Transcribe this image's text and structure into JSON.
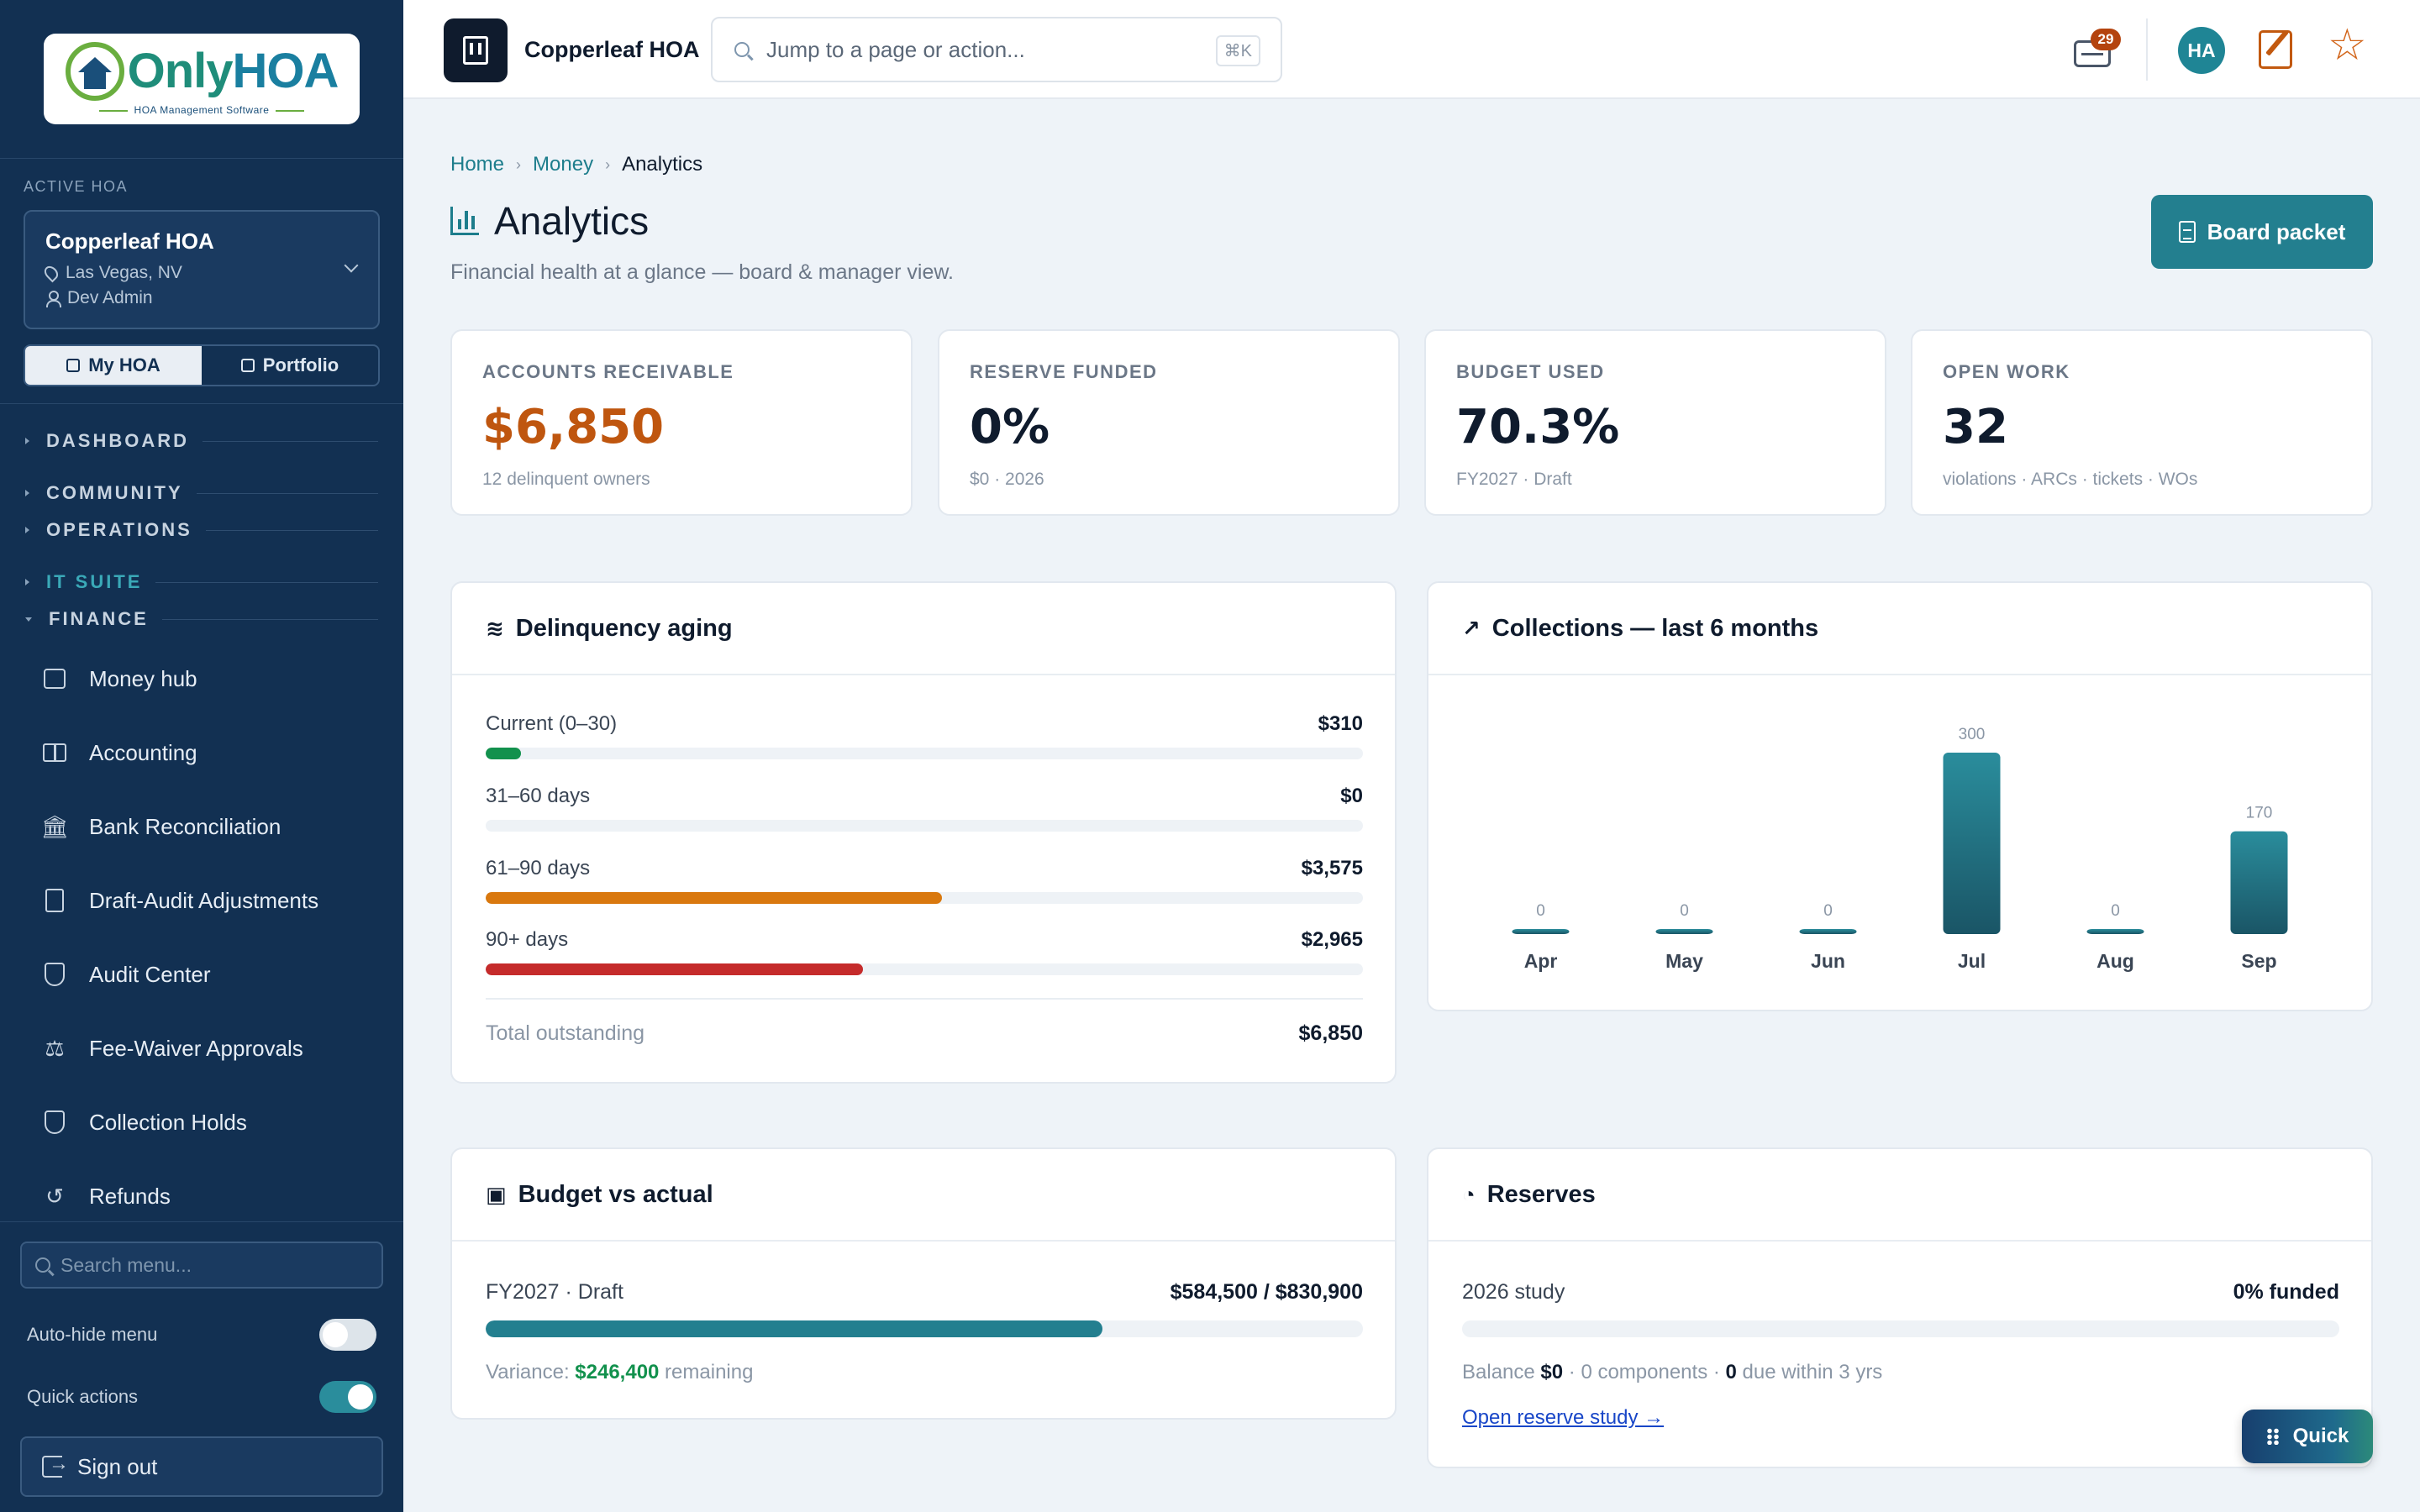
{
  "sidebar": {
    "logo": {
      "name_a": "Only",
      "name_b": "HOA",
      "tagline": "HOA Management Software"
    },
    "active_label": "ACTIVE HOA",
    "hoa": {
      "name": "Copperleaf HOA",
      "location": "Las Vegas, NV",
      "user": "Dev Admin"
    },
    "segments": [
      {
        "label": "My HOA"
      },
      {
        "label": "Portfolio"
      }
    ],
    "sections": [
      {
        "label": "DASHBOARD"
      },
      {
        "label": "COMMUNITY"
      },
      {
        "label": "OPERATIONS"
      },
      {
        "label": "IT SUITE"
      },
      {
        "label": "FINANCE"
      }
    ],
    "items": [
      {
        "label": "Money hub",
        "icon": "wallet-icon"
      },
      {
        "label": "Accounting",
        "icon": "book-icon"
      },
      {
        "label": "Bank Reconciliation",
        "icon": "bank-icon"
      },
      {
        "label": "Draft-Audit Adjustments",
        "icon": "file-edit-icon"
      },
      {
        "label": "Audit Center",
        "icon": "shield-check-icon"
      },
      {
        "label": "Fee-Waiver Approvals",
        "icon": "gavel-icon"
      },
      {
        "label": "Collection Holds",
        "icon": "shield-alert-icon"
      },
      {
        "label": "Refunds",
        "icon": "undo-icon"
      }
    ],
    "search_placeholder": "Search menu...",
    "autohide_label": "Auto-hide menu",
    "quick_actions_label": "Quick actions",
    "signout_label": "Sign out"
  },
  "topbar": {
    "hoa_name": "Copperleaf HOA",
    "search_placeholder": "Jump to a page or action...",
    "shortcut": "⌘K",
    "inbox_count": "29",
    "avatar_initials": "HA"
  },
  "breadcrumb": {
    "home": "Home",
    "money": "Money",
    "current": "Analytics"
  },
  "page": {
    "title": "Analytics",
    "subtitle": "Financial health at a glance — board & manager view.",
    "board_packet_label": "Board packet"
  },
  "kpis": [
    {
      "label": "ACCOUNTS RECEIVABLE",
      "value": "$6,850",
      "sub": "12 delinquent owners"
    },
    {
      "label": "RESERVE FUNDED",
      "value": "0%",
      "sub": "$0 · 2026"
    },
    {
      "label": "BUDGET USED",
      "value": "70.3%",
      "sub": "FY2027 · Draft"
    },
    {
      "label": "OPEN WORK",
      "value": "32",
      "sub": "violations · ARCs · tickets · WOs"
    }
  ],
  "delinquency": {
    "title": "Delinquency aging",
    "rows": [
      {
        "label": "Current (0–30)",
        "amount": "$310",
        "fraction": 0.04,
        "color": "#12914d"
      },
      {
        "label": "31–60 days",
        "amount": "$0",
        "fraction": 0,
        "color": "#12914d"
      },
      {
        "label": "61–90 days",
        "amount": "$3,575",
        "fraction": 0.52,
        "color": "#d9780e"
      },
      {
        "label": "90+ days",
        "amount": "$2,965",
        "fraction": 0.43,
        "color": "#c52b2b"
      }
    ],
    "total_label": "Total outstanding",
    "total_amount": "$6,850"
  },
  "collections": {
    "title": "Collections — last 6 months",
    "chart_data": {
      "type": "bar",
      "categories": [
        "Apr",
        "May",
        "Jun",
        "Jul",
        "Aug",
        "Sep"
      ],
      "values": [
        0,
        0,
        0,
        300,
        0,
        170
      ],
      "title": "Collections — last 6 months",
      "xlabel": "",
      "ylabel": "",
      "ylim": [
        0,
        300
      ],
      "grid": false,
      "color": "#237f8f"
    }
  },
  "budget": {
    "title": "Budget vs actual",
    "label": "FY2027 · Draft",
    "amount": "$584,500 / $830,900",
    "fraction": 0.703,
    "variance_prefix": "Variance: ",
    "variance_value": "$246,400",
    "variance_suffix": " remaining"
  },
  "reserves": {
    "title": "Reserves",
    "study_label": "2026 study",
    "funded": "0% funded",
    "fraction": 0,
    "balance_prefix": "Balance ",
    "balance_value": "$0",
    "components_text": " · 0 components · ",
    "due_value": "0",
    "due_suffix": " due within 3 yrs",
    "link_label": "Open reserve study →"
  },
  "quick_button": "Quick"
}
